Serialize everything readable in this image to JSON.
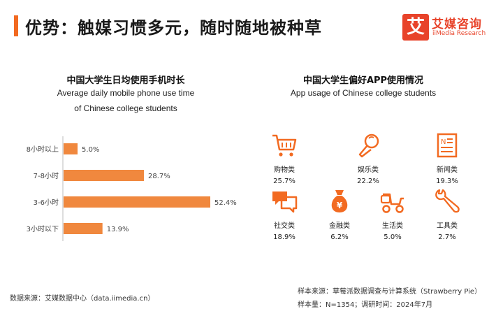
{
  "header": {
    "title": "优势：触媒习惯多元，随时随地被种草",
    "logo_mark": "艾",
    "logo_cn": "艾媒咨询",
    "logo_en": "iiMedia Research"
  },
  "left_panel": {
    "title": "中国大学生日均使用手机时长",
    "subtitle_line1": "Average daily mobile phone use time",
    "subtitle_line2": "of Chinese college students"
  },
  "right_panel": {
    "title": "中国大学生偏好APP使用情况",
    "subtitle": "App usage of Chinese college students",
    "apps": [
      {
        "label": "购物类",
        "value": "25.7%",
        "icon": "shopping-cart-icon"
      },
      {
        "label": "娱乐类",
        "value": "22.2%",
        "icon": "microphone-icon"
      },
      {
        "label": "新闻类",
        "value": "19.3%",
        "icon": "news-icon"
      },
      {
        "label": "社交类",
        "value": "18.9%",
        "icon": "chat-bubbles-icon"
      },
      {
        "label": "金融类",
        "value": "6.2%",
        "icon": "money-bag-icon"
      },
      {
        "label": "生活类",
        "value": "5.0%",
        "icon": "scooter-icon"
      },
      {
        "label": "工具类",
        "value": "2.7%",
        "icon": "wrench-icon"
      }
    ]
  },
  "footer": {
    "source_left": "数据来源：艾媒数据中心（data.iimedia.cn）",
    "source_right_1": "样本来源：草莓派数据调查与计算系统（Strawberry Pie）",
    "source_right_2": "样本量：N=1354；调研时间：2024年7月"
  },
  "colors": {
    "accent": "#f26a21",
    "bar": "#f0883e",
    "logo": "#e8432a"
  },
  "chart_data": {
    "type": "bar",
    "orientation": "horizontal",
    "categories": [
      "8小时以上",
      "7-8小时",
      "3-6小时",
      "3小时以下"
    ],
    "values": [
      5.0,
      28.7,
      52.4,
      13.9
    ],
    "value_labels": [
      "5.0%",
      "28.7%",
      "52.4%",
      "13.9%"
    ],
    "unit": "%",
    "xlim": [
      0,
      60
    ],
    "grid": false,
    "legend": "none"
  }
}
